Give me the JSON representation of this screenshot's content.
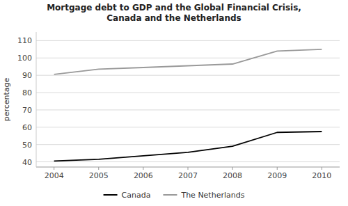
{
  "chart_data": {
    "type": "line",
    "title": "Mortgage debt to GDP and the Global Financial Crisis,\nCanada and the Netherlands",
    "ylabel": "percentage",
    "x": [
      2004,
      2005,
      2006,
      2007,
      2008,
      2009,
      2010
    ],
    "series": [
      {
        "name": "Canada",
        "color": "#000000",
        "values": [
          40.5,
          41.5,
          43.5,
          45.5,
          49.0,
          57.0,
          57.5
        ]
      },
      {
        "name": "The Netherlands",
        "color": "#999999",
        "values": [
          90.5,
          93.5,
          94.5,
          95.5,
          96.5,
          104.0,
          105.0
        ]
      }
    ],
    "xlim": [
      2003.6,
      2010.4
    ],
    "xticks": [
      2004,
      2005,
      2006,
      2007,
      2008,
      2009,
      2010
    ],
    "ylim": [
      37,
      115
    ],
    "yticks": [
      40,
      50,
      60,
      70,
      80,
      90,
      100,
      110
    ],
    "grid": true,
    "legend": "bottom"
  }
}
